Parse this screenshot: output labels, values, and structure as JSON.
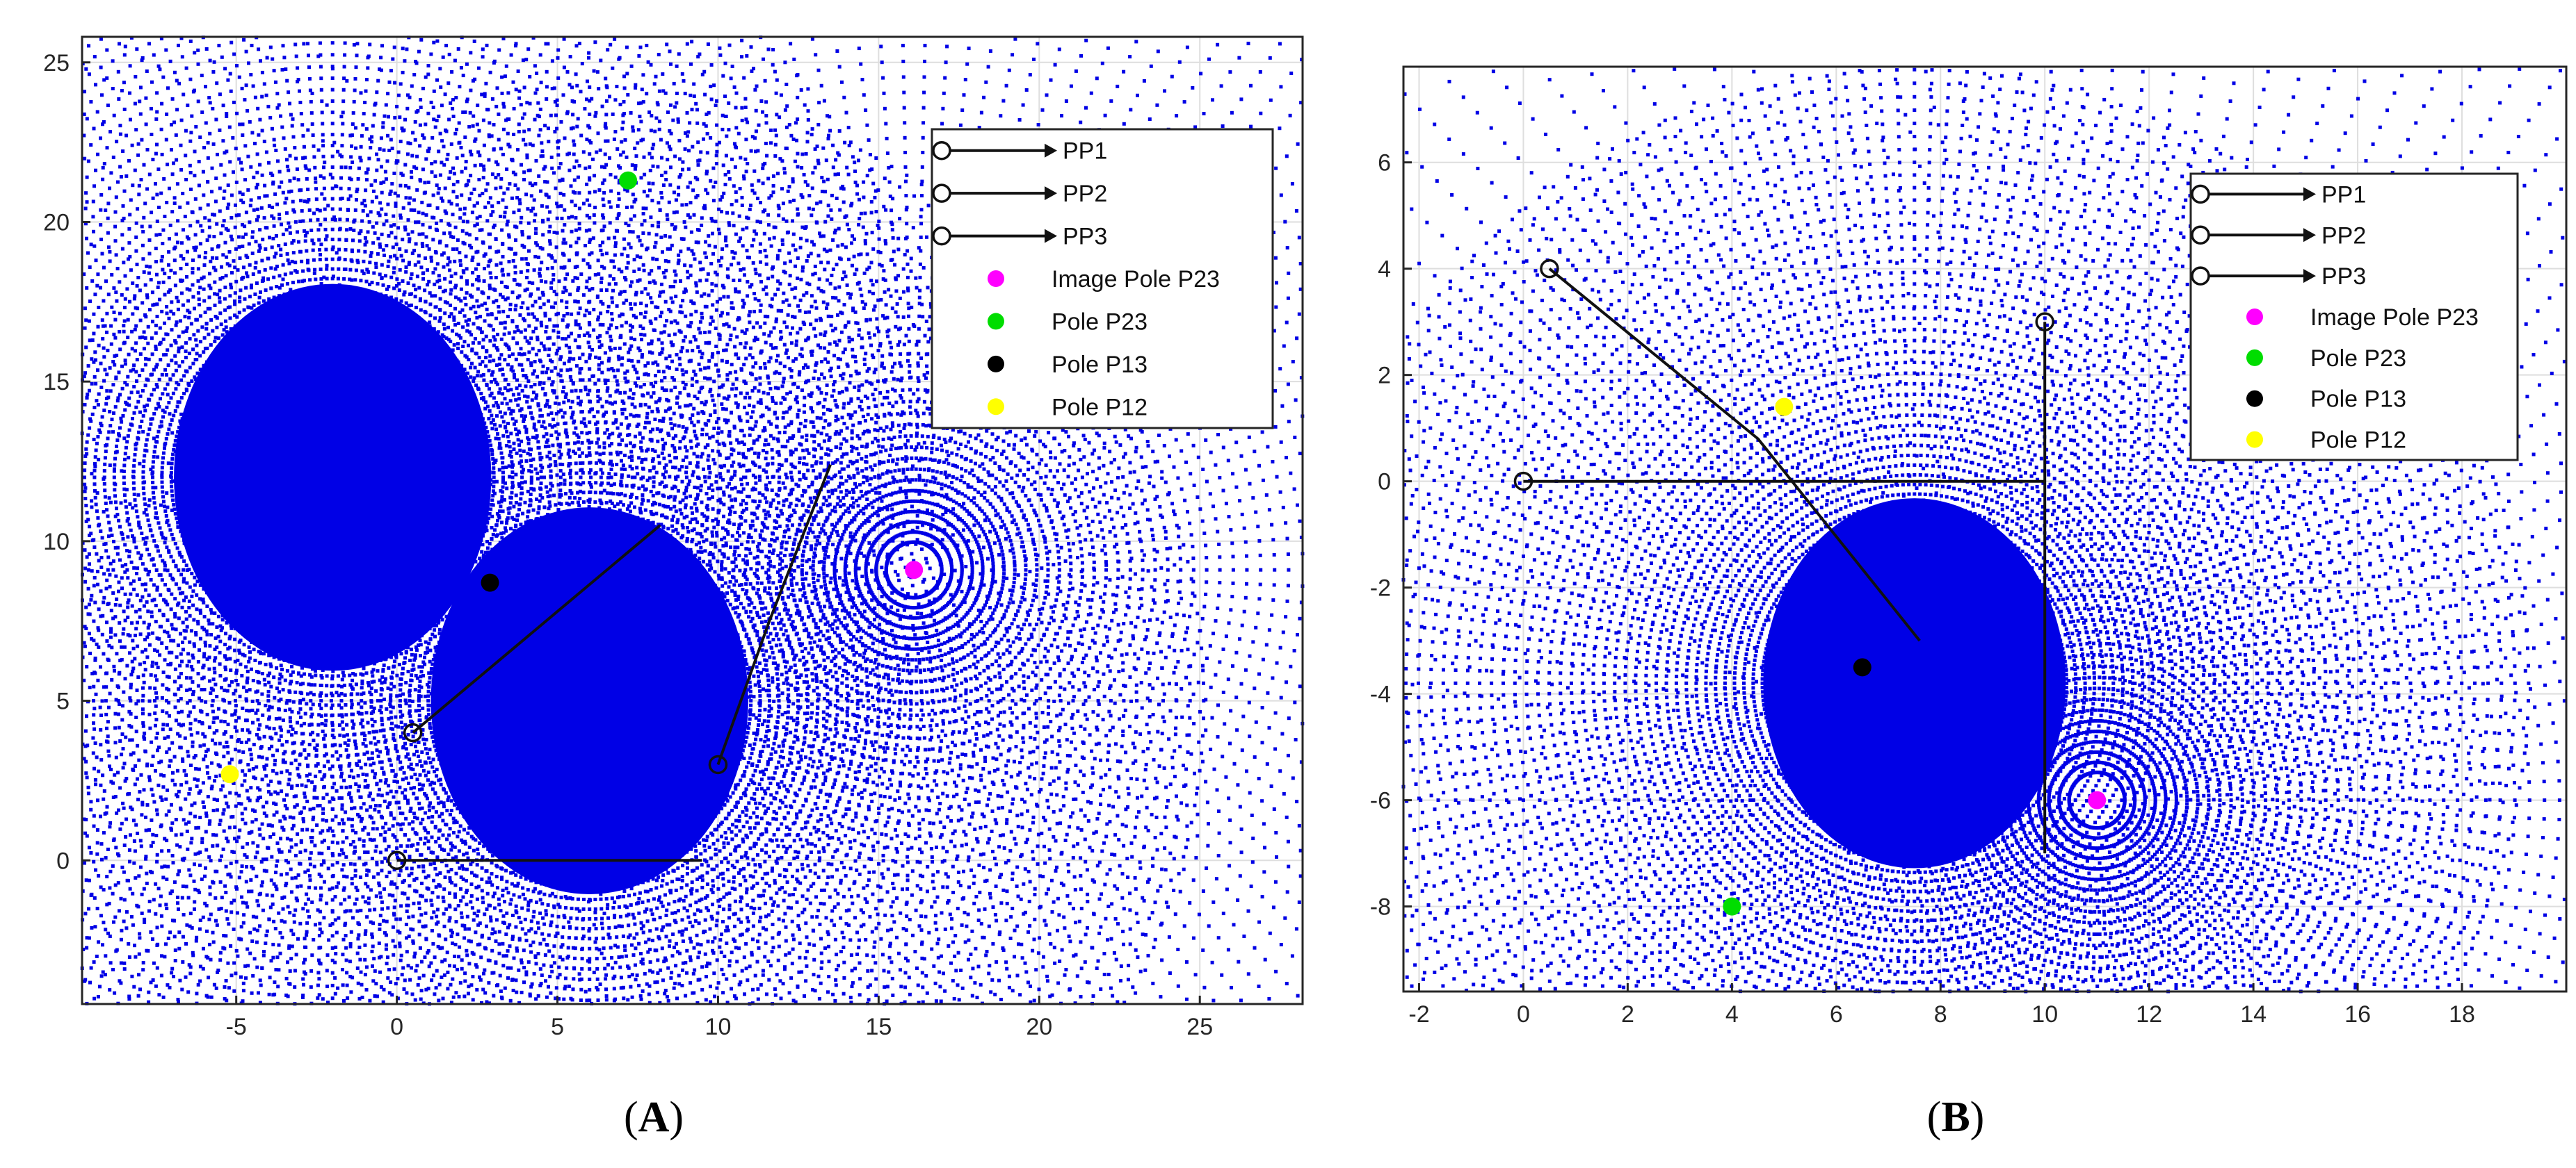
{
  "chart_data": [
    {
      "type": "scatter",
      "panel_label": "A",
      "xlim": [
        -9.8,
        28.2
      ],
      "ylim": [
        -4.5,
        25.8
      ],
      "x_ticks": [
        -5,
        0,
        5,
        10,
        15,
        20,
        25
      ],
      "y_ticks": [
        0,
        5,
        10,
        15,
        20,
        25
      ],
      "grid": true,
      "legend_placement": "top-right",
      "field": {
        "centers": [
          [
            -2,
            12
          ],
          [
            6,
            5
          ]
        ],
        "sink": [
          16.1,
          9.1
        ],
        "color": "#0000e6"
      },
      "path_points": [
        [
          0.5,
          4.0
        ],
        [
          0,
          0
        ],
        [
          10,
          3
        ]
      ],
      "paths": [
        {
          "name": "PP1",
          "points": [
            [
              0.5,
              4.0
            ],
            [
              8.2,
              10.5
            ]
          ]
        },
        {
          "name": "PP2",
          "points": [
            [
              0,
              0
            ],
            [
              9.5,
              0
            ]
          ]
        },
        {
          "name": "PP3",
          "points": [
            [
              10,
              3
            ],
            [
              11.6,
              7.5
            ],
            [
              13.5,
              12.4
            ]
          ]
        }
      ],
      "poles": [
        {
          "name": "Image Pole P23",
          "x": 16.1,
          "y": 9.1,
          "color": "#ff00ff"
        },
        {
          "name": "Pole P23",
          "x": 7.2,
          "y": 21.3,
          "color": "#00dd00"
        },
        {
          "name": "Pole P13",
          "x": 2.9,
          "y": 8.7,
          "color": "#000000"
        },
        {
          "name": "Pole P12",
          "x": -5.2,
          "y": 2.7,
          "color": "#ffff00"
        }
      ]
    },
    {
      "type": "scatter",
      "panel_label": "B",
      "xlim": [
        -2.3,
        20.0
      ],
      "ylim": [
        -9.6,
        7.8
      ],
      "x_ticks": [
        -2,
        0,
        2,
        4,
        6,
        8,
        10,
        12,
        14,
        16,
        18
      ],
      "y_ticks": [
        -8,
        -6,
        -4,
        -2,
        0,
        2,
        4,
        6
      ],
      "grid": true,
      "legend_placement": "top-right",
      "field": {
        "centers": [
          [
            7.5,
            -3.8
          ]
        ],
        "sink": [
          11.0,
          -6.0
        ],
        "color": "#0000e6"
      },
      "path_points": [
        [
          0.5,
          4.0
        ],
        [
          0,
          0
        ],
        [
          10,
          3
        ]
      ],
      "paths": [
        {
          "name": "PP1",
          "points": [
            [
              0.5,
              4.0
            ],
            [
              4.5,
              0.8
            ],
            [
              7.6,
              -3.0
            ]
          ]
        },
        {
          "name": "PP2",
          "points": [
            [
              0,
              0
            ],
            [
              10,
              0
            ]
          ]
        },
        {
          "name": "PP3",
          "points": [
            [
              10,
              3
            ],
            [
              10,
              -7.0
            ]
          ]
        }
      ],
      "poles": [
        {
          "name": "Image Pole P23",
          "x": 11.0,
          "y": -6.0,
          "color": "#ff00ff"
        },
        {
          "name": "Pole P23",
          "x": 4.0,
          "y": -8.0,
          "color": "#00dd00"
        },
        {
          "name": "Pole P13",
          "x": 6.5,
          "y": -3.5,
          "color": "#000000"
        },
        {
          "name": "Pole P12",
          "x": 5.0,
          "y": 1.4,
          "color": "#ffff00"
        }
      ]
    }
  ]
}
